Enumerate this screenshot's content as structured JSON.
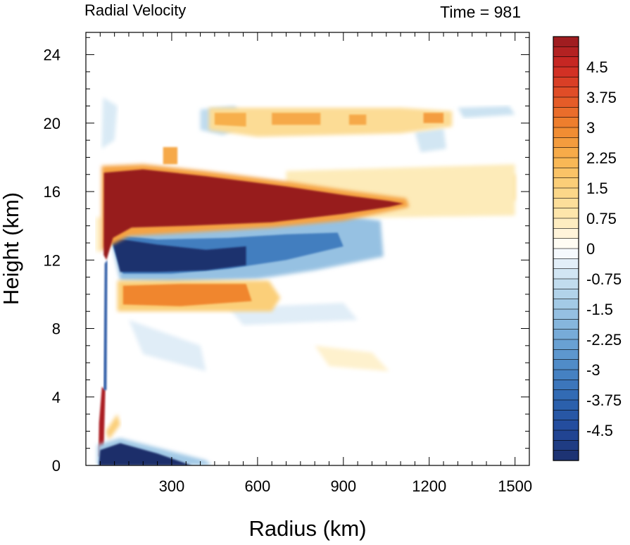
{
  "chart_data": {
    "type": "heatmap",
    "title_left": "Radial Velocity",
    "title_right": "Time = 981",
    "xlabel": "Radius (km)",
    "ylabel": "Height (km)",
    "xlim": [
      0,
      1550
    ],
    "ylim": [
      0,
      25.3
    ],
    "x_ticks": [
      300,
      600,
      900,
      1200,
      1500
    ],
    "x_tick_labels": [
      "300",
      "600",
      "900",
      "1200",
      "1500"
    ],
    "y_ticks": [
      0,
      4,
      8,
      12,
      16,
      20,
      24
    ],
    "y_tick_labels": [
      "0",
      "4",
      "8",
      "12",
      "16",
      "20",
      "24"
    ],
    "colorbar": {
      "levels": [
        -5.25,
        5.25
      ],
      "step": 0.25,
      "tick_values": [
        4.5,
        3.75,
        3,
        2.25,
        1.5,
        0.75,
        0,
        -0.75,
        -1.5,
        -2.25,
        -3,
        -3.75,
        -4.5
      ],
      "tick_labels": [
        "4.5",
        "3.75",
        "3",
        "2.25",
        "1.5",
        "0.75",
        "0",
        "-0.75",
        "-1.5",
        "-2.25",
        "-3",
        "-3.75",
        "-4.5"
      ]
    },
    "features": [
      {
        "name": "upper-level outflow",
        "sign": "positive",
        "value": 5.5,
        "r": [
          60,
          1110
        ],
        "z": [
          13.8,
          17.4
        ]
      },
      {
        "name": "mid-level inflow",
        "sign": "negative",
        "value": -5.2,
        "r": [
          70,
          900
        ],
        "z": [
          10.8,
          13.8
        ]
      },
      {
        "name": "mid-level outflow",
        "sign": "positive",
        "value": 3.0,
        "r": [
          120,
          640
        ],
        "z": [
          9.3,
          10.7
        ]
      },
      {
        "name": "boundary-layer inflow",
        "sign": "negative",
        "value": -5.3,
        "r": [
          45,
          380
        ],
        "z": [
          0,
          1.3
        ]
      },
      {
        "name": "near-core outflow",
        "sign": "positive",
        "value": 5.0,
        "r": [
          45,
          70
        ],
        "z": [
          0.5,
          4.4
        ]
      },
      {
        "name": "upper outflow layer",
        "sign": "positive",
        "value": 2.0,
        "r": [
          450,
          1250
        ],
        "z": [
          19.5,
          20.8
        ]
      },
      {
        "name": "outer upper outflow",
        "sign": "positive",
        "value": 1.2,
        "r": [
          1050,
          1500
        ],
        "z": [
          15.2,
          17.0
        ]
      }
    ]
  }
}
